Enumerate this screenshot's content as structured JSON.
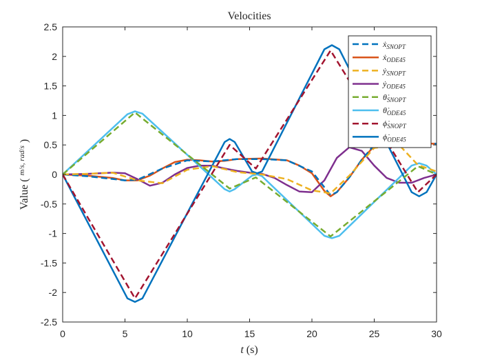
{
  "chart_data": {
    "type": "line",
    "title": "Velocities",
    "xlabel": "t (s)",
    "ylabel": "Value (m/s, rad/s)",
    "xlim": [
      0,
      30
    ],
    "ylim": [
      -2.5,
      2.5
    ],
    "xticks": [
      0,
      5,
      10,
      15,
      20,
      25,
      30
    ],
    "xtick_labels": [
      "0",
      "5",
      "10",
      "15",
      "20",
      "25",
      "30"
    ],
    "yticks": [
      -2.5,
      -2,
      -1.5,
      -1,
      -0.5,
      0,
      0.5,
      1,
      1.5,
      2,
      2.5
    ],
    "ytick_labels": [
      "-2.5",
      "-2",
      "-1.5",
      "-1",
      "-0.5",
      "0",
      "0.5",
      "1",
      "1.5",
      "2",
      "2.5"
    ],
    "grid": false,
    "legend_position": "top-right",
    "series": [
      {
        "name": "ẋ_SNOPT",
        "label": "ẋ",
        "sub": "SNOPT",
        "color": "#0072BD",
        "style": "dash",
        "x": [
          0,
          2,
          5,
          6,
          8,
          10,
          12,
          14,
          16,
          18,
          20,
          21.5,
          22,
          23,
          24,
          25,
          26,
          28,
          30
        ],
        "y": [
          0,
          -0.03,
          -0.1,
          -0.09,
          0.1,
          0.24,
          0.22,
          0.26,
          0.26,
          0.24,
          0.05,
          -0.35,
          -0.3,
          -0.05,
          0.25,
          0.5,
          0.58,
          0.53,
          0.52
        ]
      },
      {
        "name": "ẋ_ODE45",
        "label": "ẋ",
        "sub": "ODE45",
        "color": "#D95319",
        "style": "solid",
        "x": [
          0,
          2,
          4,
          5,
          6,
          7,
          8,
          9,
          10,
          11,
          12,
          13,
          14,
          16,
          18,
          19,
          20,
          21,
          21.5,
          22,
          23,
          24,
          25,
          26,
          28,
          30
        ],
        "y": [
          0,
          -0.02,
          -0.06,
          -0.1,
          -0.1,
          -0.02,
          0.1,
          0.21,
          0.25,
          0.24,
          0.22,
          0.23,
          0.26,
          0.27,
          0.24,
          0.15,
          0.02,
          -0.28,
          -0.37,
          -0.3,
          -0.05,
          0.25,
          0.48,
          0.57,
          0.53,
          0.52
        ]
      },
      {
        "name": "ẏ_SNOPT",
        "label": "ẏ",
        "sub": "SNOPT",
        "color": "#EDB120",
        "style": "dash",
        "x": [
          0,
          2,
          4,
          6,
          8,
          10,
          12,
          14,
          16,
          18,
          20,
          21.5,
          23,
          25,
          27,
          28.5,
          30
        ],
        "y": [
          0,
          0.01,
          0.03,
          -0.1,
          -0.15,
          0.08,
          0.14,
          0.04,
          0,
          -0.08,
          -0.27,
          -0.32,
          -0.02,
          0.45,
          0.5,
          0.16,
          0.05
        ]
      },
      {
        "name": "ẏ_ODE45",
        "label": "ẏ",
        "sub": "ODE45",
        "color": "#7E2F8E",
        "style": "solid",
        "x": [
          0,
          1,
          2,
          3,
          4,
          5,
          6,
          7,
          8,
          9,
          10,
          11,
          12,
          13,
          14,
          15,
          16,
          17,
          18,
          19,
          20,
          21,
          22,
          23,
          24,
          25,
          26,
          27,
          28,
          29,
          30
        ],
        "y": [
          0,
          0.005,
          0.01,
          0.02,
          0.03,
          0.02,
          -0.08,
          -0.19,
          -0.14,
          0,
          0.11,
          0.15,
          0.15,
          0.1,
          0.06,
          0.03,
          0.01,
          -0.06,
          -0.18,
          -0.29,
          -0.3,
          -0.1,
          0.28,
          0.46,
          0.4,
          0.15,
          -0.06,
          -0.14,
          -0.14,
          -0.06,
          0
        ]
      },
      {
        "name": "θ̇_SNOPT",
        "label": "θ̇",
        "sub": "SNOPT",
        "color": "#77AC30",
        "style": "dash",
        "x": [
          0,
          5.8,
          13.4,
          15.5,
          21.5,
          28.5,
          30
        ],
        "y": [
          0,
          1.05,
          -0.24,
          -0.05,
          -1.05,
          0.14,
          0
        ]
      },
      {
        "name": "θ̇_ODE45",
        "label": "θ̇",
        "sub": "ODE45",
        "color": "#4DBEEE",
        "style": "solid",
        "x": [
          0,
          5.2,
          5.8,
          6.4,
          13.0,
          13.4,
          13.8,
          15.2,
          15.6,
          16.0,
          21.0,
          21.6,
          22.2,
          28.0,
          28.6,
          29.2,
          30
        ],
        "y": [
          0,
          1.02,
          1.07,
          1.03,
          -0.25,
          -0.29,
          -0.25,
          -0.02,
          0,
          -0.03,
          -1.04,
          -1.08,
          -1.04,
          0.15,
          0.19,
          0.15,
          0
        ]
      },
      {
        "name": "ϕ̇_SNOPT",
        "label": "ϕ̇",
        "sub": "SNOPT",
        "color": "#A2142F",
        "style": "dash",
        "x": [
          0,
          5.8,
          13.4,
          15.5,
          21.5,
          28.5,
          30
        ],
        "y": [
          0,
          -2.1,
          0.5,
          0.1,
          2.1,
          -0.3,
          0
        ]
      },
      {
        "name": "ϕ̇_ODE45",
        "label": "ϕ̇",
        "sub": "ODE45",
        "color": "#0072BD",
        "style": "solid",
        "x": [
          0,
          5.2,
          5.8,
          6.4,
          13.0,
          13.4,
          13.8,
          15.2,
          15.6,
          16.0,
          21.0,
          21.6,
          22.2,
          28.0,
          28.6,
          29.2,
          30
        ],
        "y": [
          0,
          -2.1,
          -2.16,
          -2.1,
          0.55,
          0.6,
          0.55,
          0.05,
          0.02,
          0.05,
          2.12,
          2.19,
          2.12,
          -0.3,
          -0.37,
          -0.3,
          0
        ]
      }
    ]
  }
}
